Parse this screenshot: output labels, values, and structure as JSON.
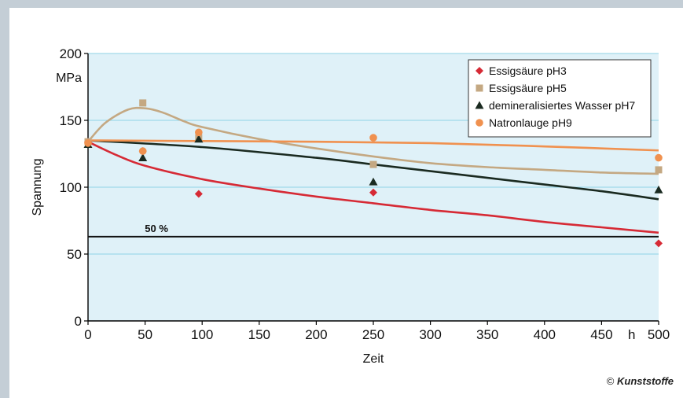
{
  "chart_data": {
    "type": "scatter",
    "title": "",
    "xlabel": "Zeit",
    "x_unit": "h",
    "ylabel": "Spannung",
    "y_unit": "MPa",
    "xlim": [
      0,
      500
    ],
    "ylim": [
      0,
      200
    ],
    "x_ticks": [
      "0",
      "50",
      "100",
      "150",
      "200",
      "250",
      "300",
      "350",
      "400",
      "450",
      "500"
    ],
    "y_ticks": [
      "0",
      "50",
      "100",
      "150",
      "200"
    ],
    "grid": "horizontal",
    "legend_position": "top-right",
    "reference_line": {
      "label": "50 %",
      "y": 63
    },
    "series": [
      {
        "name": "Essigsäure pH3",
        "marker": "diamond",
        "color": "#d62a35",
        "x": [
          0,
          48,
          97,
          250,
          500
        ],
        "values": [
          134,
          127,
          95,
          96,
          58
        ],
        "trend": [
          [
            0,
            134
          ],
          [
            25,
            124
          ],
          [
            50,
            116
          ],
          [
            100,
            106
          ],
          [
            150,
            99
          ],
          [
            200,
            93
          ],
          [
            250,
            88
          ],
          [
            300,
            83
          ],
          [
            350,
            79
          ],
          [
            400,
            74
          ],
          [
            450,
            70
          ],
          [
            500,
            66
          ]
        ]
      },
      {
        "name": "Essigsäure pH5",
        "marker": "square",
        "color": "#c4a882",
        "x": [
          0,
          48,
          97,
          250,
          500
        ],
        "values": [
          134,
          163,
          137,
          117,
          113
        ],
        "trend": [
          [
            0,
            134
          ],
          [
            15,
            148
          ],
          [
            35,
            158
          ],
          [
            50,
            159
          ],
          [
            65,
            156
          ],
          [
            85,
            149
          ],
          [
            100,
            145
          ],
          [
            150,
            136
          ],
          [
            200,
            129
          ],
          [
            250,
            123
          ],
          [
            300,
            118
          ],
          [
            350,
            115
          ],
          [
            400,
            113
          ],
          [
            450,
            111
          ],
          [
            500,
            110
          ]
        ]
      },
      {
        "name": "demineralisiertes Wasser pH7",
        "marker": "triangle",
        "color": "#1a2a20",
        "x": [
          0,
          48,
          97,
          250,
          500
        ],
        "values": [
          132,
          122,
          136,
          104,
          98
        ],
        "trend": [
          [
            0,
            135
          ],
          [
            100,
            130
          ],
          [
            200,
            122
          ],
          [
            250,
            117
          ],
          [
            300,
            112
          ],
          [
            350,
            107
          ],
          [
            400,
            102
          ],
          [
            450,
            97
          ],
          [
            500,
            91
          ]
        ]
      },
      {
        "name": "Natronlauge pH9",
        "marker": "circle",
        "color": "#f0914f",
        "x": [
          0,
          48,
          97,
          250,
          500
        ],
        "values": [
          133,
          127,
          141,
          137,
          122
        ],
        "trend": [
          [
            0,
            135
          ],
          [
            100,
            134.5
          ],
          [
            200,
            134
          ],
          [
            300,
            133
          ],
          [
            400,
            130.5
          ],
          [
            500,
            127.5
          ]
        ]
      }
    ]
  },
  "copyright": {
    "symbol": "©",
    "brand": "Kunststoffe"
  }
}
